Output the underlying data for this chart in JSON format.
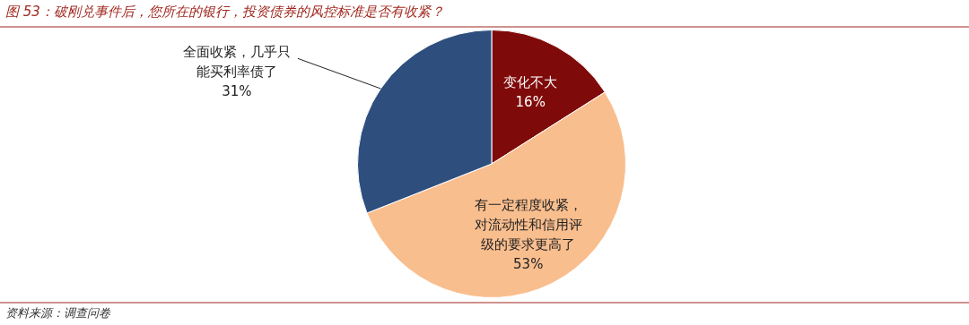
{
  "chart_data": {
    "type": "pie",
    "title": "图 53：破刚兑事件后，您所在的银行，投资债券的风控标准是否有收紧？",
    "categories": [
      "变化不大",
      "有一定程度收紧，对流动性和信用评级的要求更高了",
      "全面收紧，几乎只能买利率债了"
    ],
    "values": [
      16,
      53,
      31
    ],
    "colors": [
      "#7f0a0a",
      "#f9be8e",
      "#2e4f7e"
    ],
    "value_labels": [
      "16%",
      "53%",
      "31%"
    ],
    "legend": false,
    "annotations": [
      "资料来源：调查问卷"
    ]
  }
}
